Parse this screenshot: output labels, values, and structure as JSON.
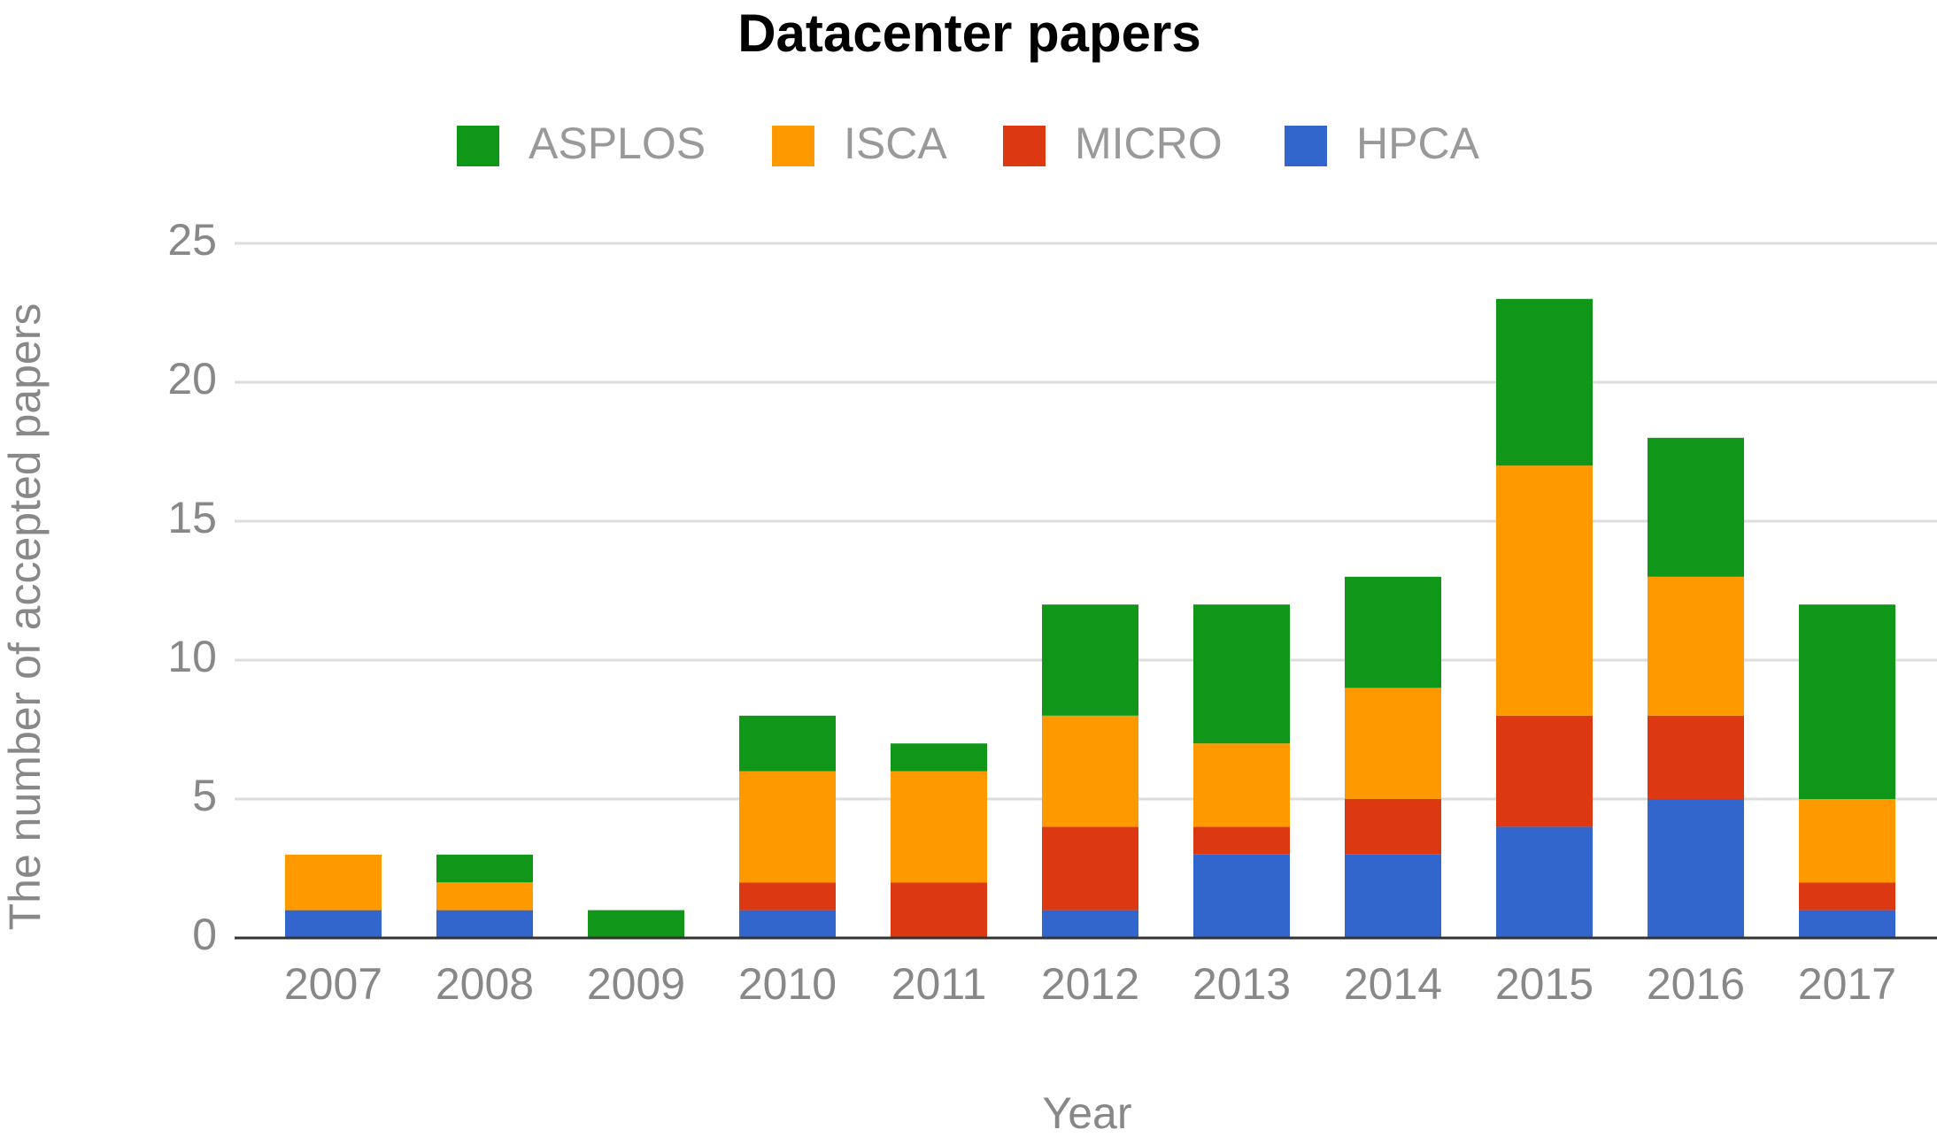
{
  "chart_data": {
    "type": "stacked_bar",
    "title": "Datacenter papers",
    "x_label": "Year",
    "y_label": "The number of accepted papers",
    "categories": [
      "2007",
      "2008",
      "2009",
      "2010",
      "2011",
      "2012",
      "2013",
      "2014",
      "2015",
      "2016",
      "2017"
    ],
    "series": [
      {
        "name": "ASPLOS",
        "color": "#109618",
        "values": [
          0,
          1,
          1,
          2,
          1,
          4,
          5,
          4,
          6,
          5,
          7
        ]
      },
      {
        "name": "ISCA",
        "color": "#ff9900",
        "values": [
          2,
          1,
          0,
          4,
          4,
          4,
          3,
          4,
          9,
          5,
          3
        ]
      },
      {
        "name": "MICRO",
        "color": "#dc3912",
        "values": [
          0,
          0,
          0,
          1,
          2,
          3,
          1,
          2,
          4,
          3,
          1
        ]
      },
      {
        "name": "HPCA",
        "color": "#3366cc",
        "values": [
          1,
          1,
          0,
          1,
          0,
          1,
          3,
          3,
          4,
          5,
          1
        ]
      }
    ],
    "ylim": [
      0,
      25
    ],
    "yticks": [
      0,
      5,
      10,
      15,
      20,
      25
    ],
    "grid": true,
    "legend": "top"
  }
}
